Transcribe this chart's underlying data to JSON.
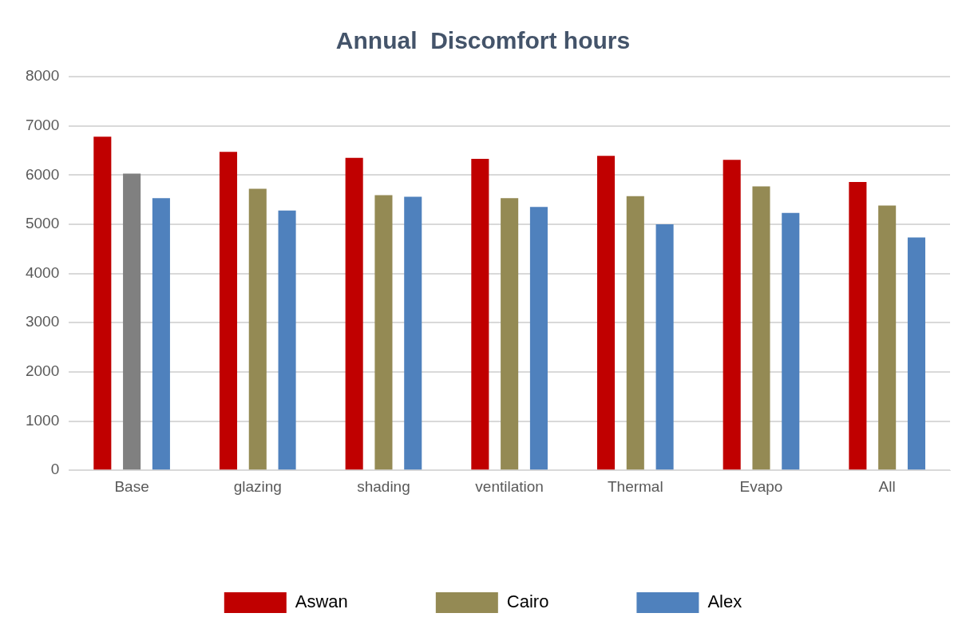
{
  "chart_data": {
    "type": "bar",
    "title": "Annual  Discomfort hours",
    "categories": [
      "Base",
      "glazing",
      "shading",
      "ventilation",
      "Thermal",
      "Evapo",
      "All"
    ],
    "series": [
      {
        "name": "Aswan",
        "color": "#c00000",
        "values": [
          6780,
          6470,
          6350,
          6330,
          6390,
          6310,
          5860
        ]
      },
      {
        "name": "Cairo",
        "color": "#948a54",
        "colors": [
          "#808080",
          "#948a54",
          "#948a54",
          "#948a54",
          "#948a54",
          "#948a54",
          "#948a54"
        ],
        "values": [
          6030,
          5720,
          5590,
          5530,
          5570,
          5770,
          5380
        ]
      },
      {
        "name": "Alex",
        "color": "#4f81bd",
        "values": [
          5530,
          5280,
          5560,
          5350,
          5000,
          5230,
          4730
        ]
      }
    ],
    "ylim": [
      0,
      8000
    ],
    "yticks": [
      0,
      1000,
      2000,
      3000,
      4000,
      5000,
      6000,
      7000,
      8000
    ],
    "grid": "y",
    "legend": "bottom"
  }
}
